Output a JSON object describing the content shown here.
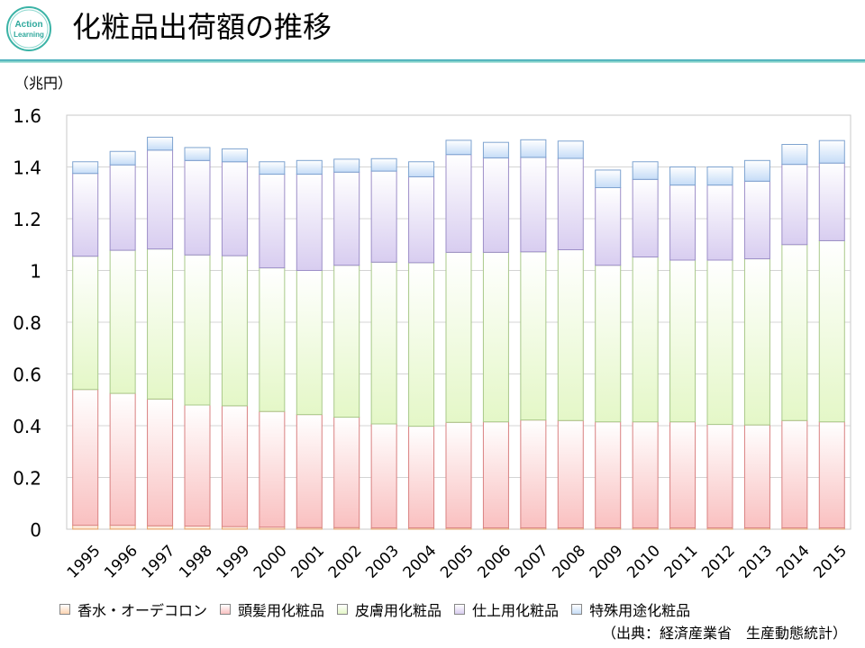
{
  "header": {
    "title": "化粧品出荷額の推移",
    "logo_text_line1": "Action",
    "logo_text_line2": "Learning"
  },
  "source_note": "（出典：経済産業省　生産動態統計）",
  "colors": {
    "perfume": "#fcd3b1",
    "hair": "#f9c0c0",
    "skin": "#e4f7c7",
    "makeup": "#d8cdf0",
    "special": "#c5dcf7",
    "accent_rule": "#3aa6b9"
  },
  "chart_data": {
    "type": "bar",
    "stacked": true,
    "ylabel": "（兆円）",
    "ylim": [
      0,
      1.6
    ],
    "yticks": [
      "0",
      "0.2",
      "0.4",
      "0.6",
      "0.8",
      "1",
      "1.2",
      "1.4",
      "1.6"
    ],
    "grid": true,
    "legend_position": "bottom",
    "categories": [
      "1995",
      "1996",
      "1997",
      "1998",
      "1999",
      "2000",
      "2001",
      "2002",
      "2003",
      "2004",
      "2005",
      "2006",
      "2007",
      "2008",
      "2009",
      "2010",
      "2011",
      "2012",
      "2013",
      "2014",
      "2015"
    ],
    "series": [
      {
        "name": "香水・オーデコロン",
        "color_key": "perfume",
        "values": [
          0.015,
          0.015,
          0.013,
          0.012,
          0.01,
          0.008,
          0.006,
          0.006,
          0.005,
          0.005,
          0.005,
          0.005,
          0.005,
          0.005,
          0.005,
          0.005,
          0.005,
          0.005,
          0.005,
          0.005,
          0.005
        ]
      },
      {
        "name": "頭髪用化粧品",
        "color_key": "hair",
        "values": [
          0.525,
          0.51,
          0.49,
          0.468,
          0.467,
          0.447,
          0.437,
          0.427,
          0.402,
          0.393,
          0.408,
          0.41,
          0.417,
          0.415,
          0.41,
          0.41,
          0.41,
          0.4,
          0.398,
          0.415,
          0.41
        ]
      },
      {
        "name": "皮膚用化粧品",
        "color_key": "skin",
        "values": [
          0.515,
          0.553,
          0.58,
          0.58,
          0.58,
          0.555,
          0.557,
          0.587,
          0.625,
          0.632,
          0.657,
          0.655,
          0.65,
          0.66,
          0.605,
          0.637,
          0.625,
          0.635,
          0.642,
          0.68,
          0.7
        ]
      },
      {
        "name": "仕上用化粧品",
        "color_key": "makeup",
        "values": [
          0.32,
          0.33,
          0.382,
          0.365,
          0.363,
          0.362,
          0.372,
          0.36,
          0.352,
          0.332,
          0.378,
          0.365,
          0.365,
          0.353,
          0.3,
          0.3,
          0.29,
          0.29,
          0.3,
          0.31,
          0.3
        ]
      },
      {
        "name": "特殊用途化粧品",
        "color_key": "special",
        "values": [
          0.045,
          0.052,
          0.05,
          0.05,
          0.05,
          0.048,
          0.053,
          0.05,
          0.048,
          0.058,
          0.055,
          0.06,
          0.068,
          0.067,
          0.068,
          0.068,
          0.07,
          0.07,
          0.08,
          0.077,
          0.087
        ]
      }
    ]
  }
}
